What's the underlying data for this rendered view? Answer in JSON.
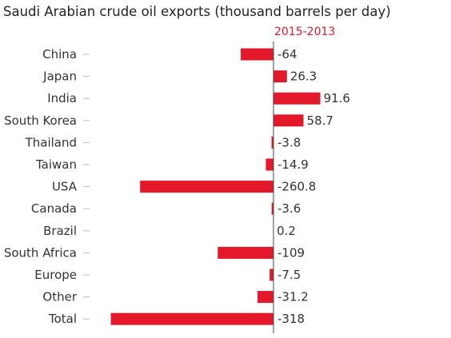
{
  "colors": {
    "bar": "#e3192b",
    "subtitle": "#e3192b",
    "tick": "#bbbbbb",
    "axis": "#444444"
  },
  "chart_data": {
    "type": "bar",
    "orientation": "horizontal",
    "title": "Saudi Arabian crude oil exports (thousand barrels per day)",
    "subtitle": "2015-2013",
    "categories": [
      "China",
      "Japan",
      "India",
      "South Korea",
      "Thailand",
      "Taiwan",
      "USA",
      "Canada",
      "Brazil",
      "South Africa",
      "Europe",
      "Other",
      "Total"
    ],
    "values": [
      -64,
      26.3,
      91.6,
      58.7,
      -3.8,
      -14.9,
      -260.8,
      -3.6,
      0.2,
      -109,
      -7.5,
      -31.2,
      -318
    ],
    "labels": [
      "-64",
      "26.3",
      "91.6",
      "58.7",
      "-3.8",
      "-14.9",
      "-260.8",
      "-3.6",
      "0.2",
      "-109",
      "-7.5",
      "-31.2",
      "-318"
    ],
    "grid": false,
    "legend": "none"
  }
}
